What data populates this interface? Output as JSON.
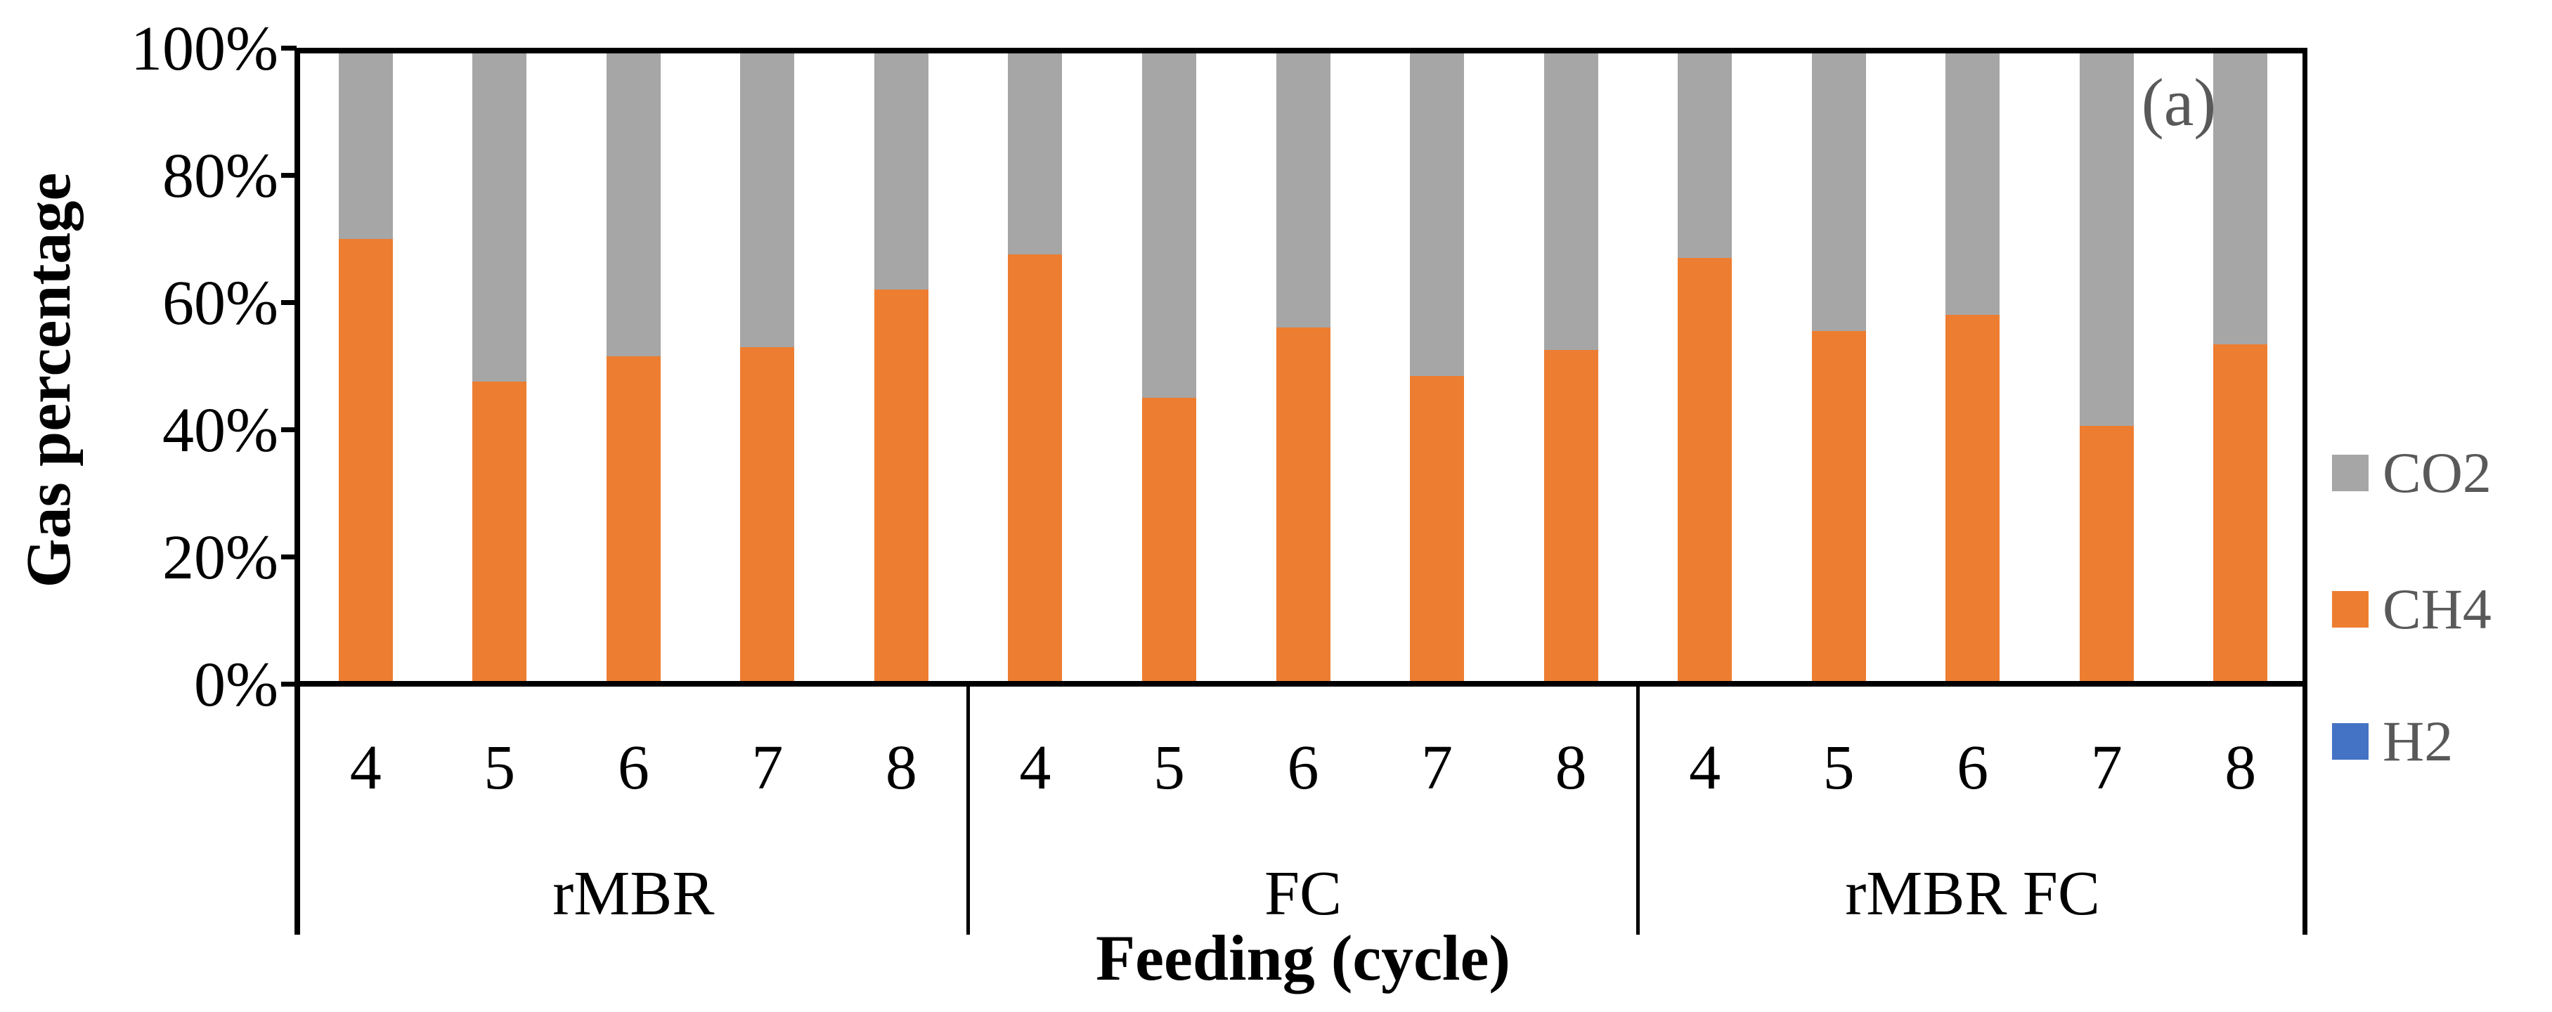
{
  "panel_label": "(a)",
  "axes": {
    "y_title": "Gas percentage",
    "x_title": "Feeding (cycle)",
    "y_ticks": [
      {
        "label": "100%",
        "value": 100
      },
      {
        "label": "80%",
        "value": 80
      },
      {
        "label": "60%",
        "value": 60
      },
      {
        "label": "40%",
        "value": 40
      },
      {
        "label": "20%",
        "value": 20
      },
      {
        "label": "0%",
        "value": 0
      }
    ]
  },
  "legend": {
    "position": "right",
    "items": [
      {
        "label": "CO2",
        "color": "#A6A6A6"
      },
      {
        "label": "CH4",
        "color": "#ED7D31"
      },
      {
        "label": "H2",
        "color": "#4472C4"
      }
    ]
  },
  "chart_data": {
    "type": "bar",
    "stacked": true,
    "unit": "percent",
    "ylim": [
      0,
      100
    ],
    "grid": false,
    "title": "",
    "xlabel": "Feeding (cycle)",
    "ylabel": "Gas percentage",
    "groups": [
      {
        "label": "rMBR",
        "categories": [
          "4",
          "5",
          "6",
          "7",
          "8"
        ]
      },
      {
        "label": "FC",
        "categories": [
          "4",
          "5",
          "6",
          "7",
          "8"
        ]
      },
      {
        "label": "rMBR FC",
        "categories": [
          "4",
          "5",
          "6",
          "7",
          "8"
        ]
      }
    ],
    "stack_order_bottom_to_top": [
      "H2",
      "CH4",
      "CO2"
    ],
    "series": [
      {
        "name": "H2",
        "color": "#4472C4",
        "values": [
          0,
          0,
          0,
          0.4,
          0,
          0,
          0,
          0,
          0.4,
          0,
          0,
          0,
          0,
          0,
          0.4
        ]
      },
      {
        "name": "CH4",
        "color": "#ED7D31",
        "values": [
          70,
          47.5,
          51.5,
          52.5,
          62,
          67.5,
          45,
          56,
          48,
          52.5,
          67,
          55.5,
          58,
          40.5,
          53
        ]
      },
      {
        "name": "CO2",
        "color": "#A6A6A6",
        "values": [
          30,
          52.5,
          48.5,
          47.1,
          38,
          32.5,
          55,
          44,
          51.6,
          47.5,
          33,
          44.5,
          42,
          59.5,
          46.6
        ]
      }
    ]
  }
}
